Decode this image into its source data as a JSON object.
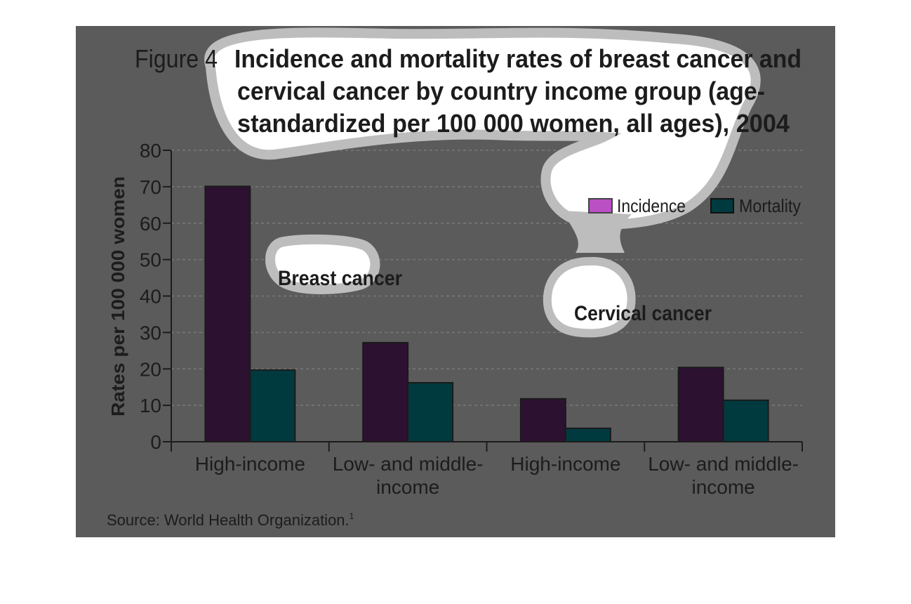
{
  "chart_data": {
    "type": "bar",
    "figure_label": "Figure 4",
    "title_lines": [
      "Incidence and mortality rates of breast cancer and",
      "cervical cancer by country income group (age-",
      "standardized per 100 000 women, all ages), 2004"
    ],
    "ylabel": "Rates per 100 000 women",
    "ylim": [
      0,
      80
    ],
    "yticks": [
      "0",
      "10",
      "20",
      "30",
      "40",
      "50",
      "60",
      "70",
      "80"
    ],
    "grid": true,
    "legend_position": "top-right",
    "groups": [
      {
        "name": "Breast cancer",
        "categories": [
          [
            "High-income"
          ],
          [
            "Low- and middle-",
            "income"
          ]
        ]
      },
      {
        "name": "Cervical cancer",
        "categories": [
          [
            "High-income"
          ],
          [
            "Low- and middle-",
            "income"
          ]
        ]
      }
    ],
    "series": [
      {
        "name": "Incidence",
        "legend_color": "#bb4fc4",
        "bar_color": "#2c1230",
        "values": [
          70.1,
          27.2,
          11.8,
          20.4
        ]
      },
      {
        "name": "Mortality",
        "legend_color": "#003a3f",
        "bar_color": "#003a3f",
        "values": [
          19.7,
          16.2,
          3.7,
          11.4
        ]
      }
    ],
    "source": "Source: World Health Organization.",
    "source_note": "1"
  }
}
